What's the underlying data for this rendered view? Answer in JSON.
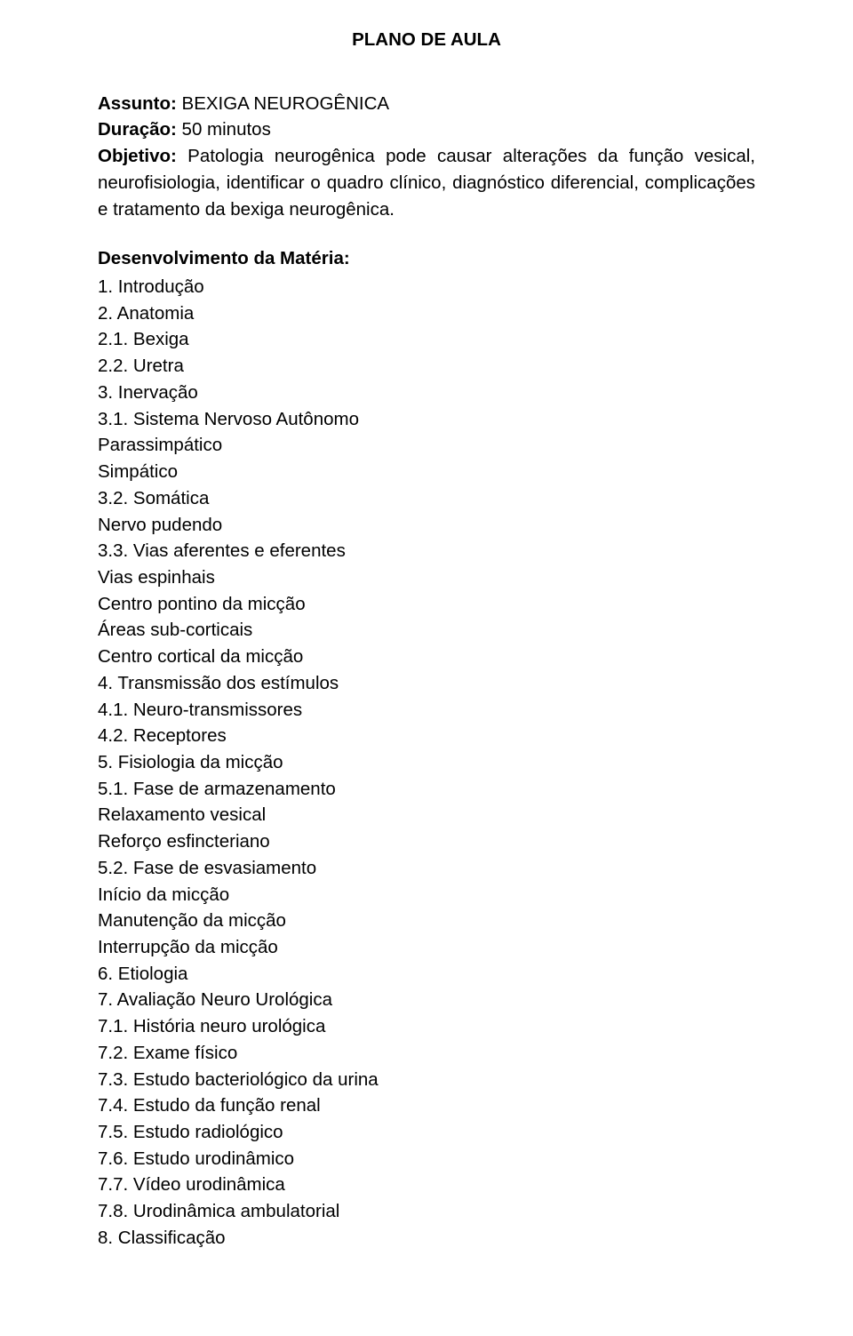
{
  "title": "PLANO DE AULA",
  "meta": {
    "assunto_label": "Assunto:",
    "assunto_value": " BEXIGA NEUROGÊNICA",
    "duracao_label": "Duração:",
    "duracao_value": " 50 minutos",
    "objetivo_label": "Objetivo:",
    "objetivo_value": " Patologia neurogênica pode causar alterações da função vesical, neurofisiologia, identificar o quadro clínico, diagnóstico diferencial, complicações e tratamento da bexiga neurogênica."
  },
  "dev_heading": "Desenvolvimento da Matéria:",
  "items": [
    {
      "level": 1,
      "num": "1.",
      "text": "Introdução"
    },
    {
      "level": 1,
      "num": "2.",
      "text": "Anatomia"
    },
    {
      "level": 2,
      "num": "2.1.",
      "text": "Bexiga"
    },
    {
      "level": 2,
      "num": "2.2.",
      "text": "Uretra"
    },
    {
      "level": 1,
      "num": "3.",
      "text": "Inervação"
    },
    {
      "level": 2,
      "num": "3.1.",
      "text": "Sistema Nervoso Autônomo"
    },
    {
      "level": 3,
      "num": "",
      "text": "Parassimpático"
    },
    {
      "level": 3,
      "num": "",
      "text": "Simpático"
    },
    {
      "level": 2,
      "num": "3.2.",
      "text": "Somática"
    },
    {
      "level": 3,
      "num": "",
      "text": "Nervo pudendo"
    },
    {
      "level": 2,
      "num": "3.3.",
      "text": "Vias aferentes e eferentes"
    },
    {
      "level": 3,
      "num": "",
      "text": "Vias espinhais"
    },
    {
      "level": 3,
      "num": "",
      "text": "Centro pontino da micção"
    },
    {
      "level": 3,
      "num": "",
      "text": "Áreas sub-corticais"
    },
    {
      "level": 3,
      "num": "",
      "text": "Centro cortical da micção"
    },
    {
      "level": 1,
      "num": "4.",
      "text": "Transmissão dos estímulos"
    },
    {
      "level": 2,
      "num": "4.1.",
      "text": "Neuro-transmissores"
    },
    {
      "level": 2,
      "num": "4.2.",
      "text": "Receptores"
    },
    {
      "level": 1,
      "num": "5.",
      "text": "Fisiologia da micção"
    },
    {
      "level": 2,
      "num": "5.1.",
      "text": "Fase de armazenamento"
    },
    {
      "level": 3,
      "num": "",
      "text": "Relaxamento vesical"
    },
    {
      "level": 3,
      "num": "",
      "text": "Reforço esfincteriano"
    },
    {
      "level": 2,
      "num": "5.2.",
      "text": "Fase de esvasiamento"
    },
    {
      "level": 3,
      "num": "",
      "text": "Início da micção"
    },
    {
      "level": 3,
      "num": "",
      "text": "Manutenção da micção"
    },
    {
      "level": 3,
      "num": "",
      "text": "Interrupção da micção"
    },
    {
      "level": 1,
      "num": "6.",
      "text": "Etiologia"
    },
    {
      "level": 1,
      "num": "7.",
      "text": "Avaliação Neuro Urológica"
    },
    {
      "level": 2,
      "num": "7.1.",
      "text": "História neuro urológica"
    },
    {
      "level": 2,
      "num": "7.2.",
      "text": "Exame físico"
    },
    {
      "level": 2,
      "num": "7.3.",
      "text": "Estudo bacteriológico da urina"
    },
    {
      "level": 2,
      "num": "7.4.",
      "text": "Estudo da função renal"
    },
    {
      "level": 2,
      "num": "7.5.",
      "text": "Estudo radiológico"
    },
    {
      "level": 2,
      "num": "7.6.",
      "text": "Estudo urodinâmico"
    },
    {
      "level": 2,
      "num": "7.7.",
      "text": "Vídeo urodinâmica"
    },
    {
      "level": 2,
      "num": "7.8.",
      "text": "Urodinâmica ambulatorial"
    },
    {
      "level": 1,
      "num": "8.",
      "text": "Classificação"
    }
  ]
}
